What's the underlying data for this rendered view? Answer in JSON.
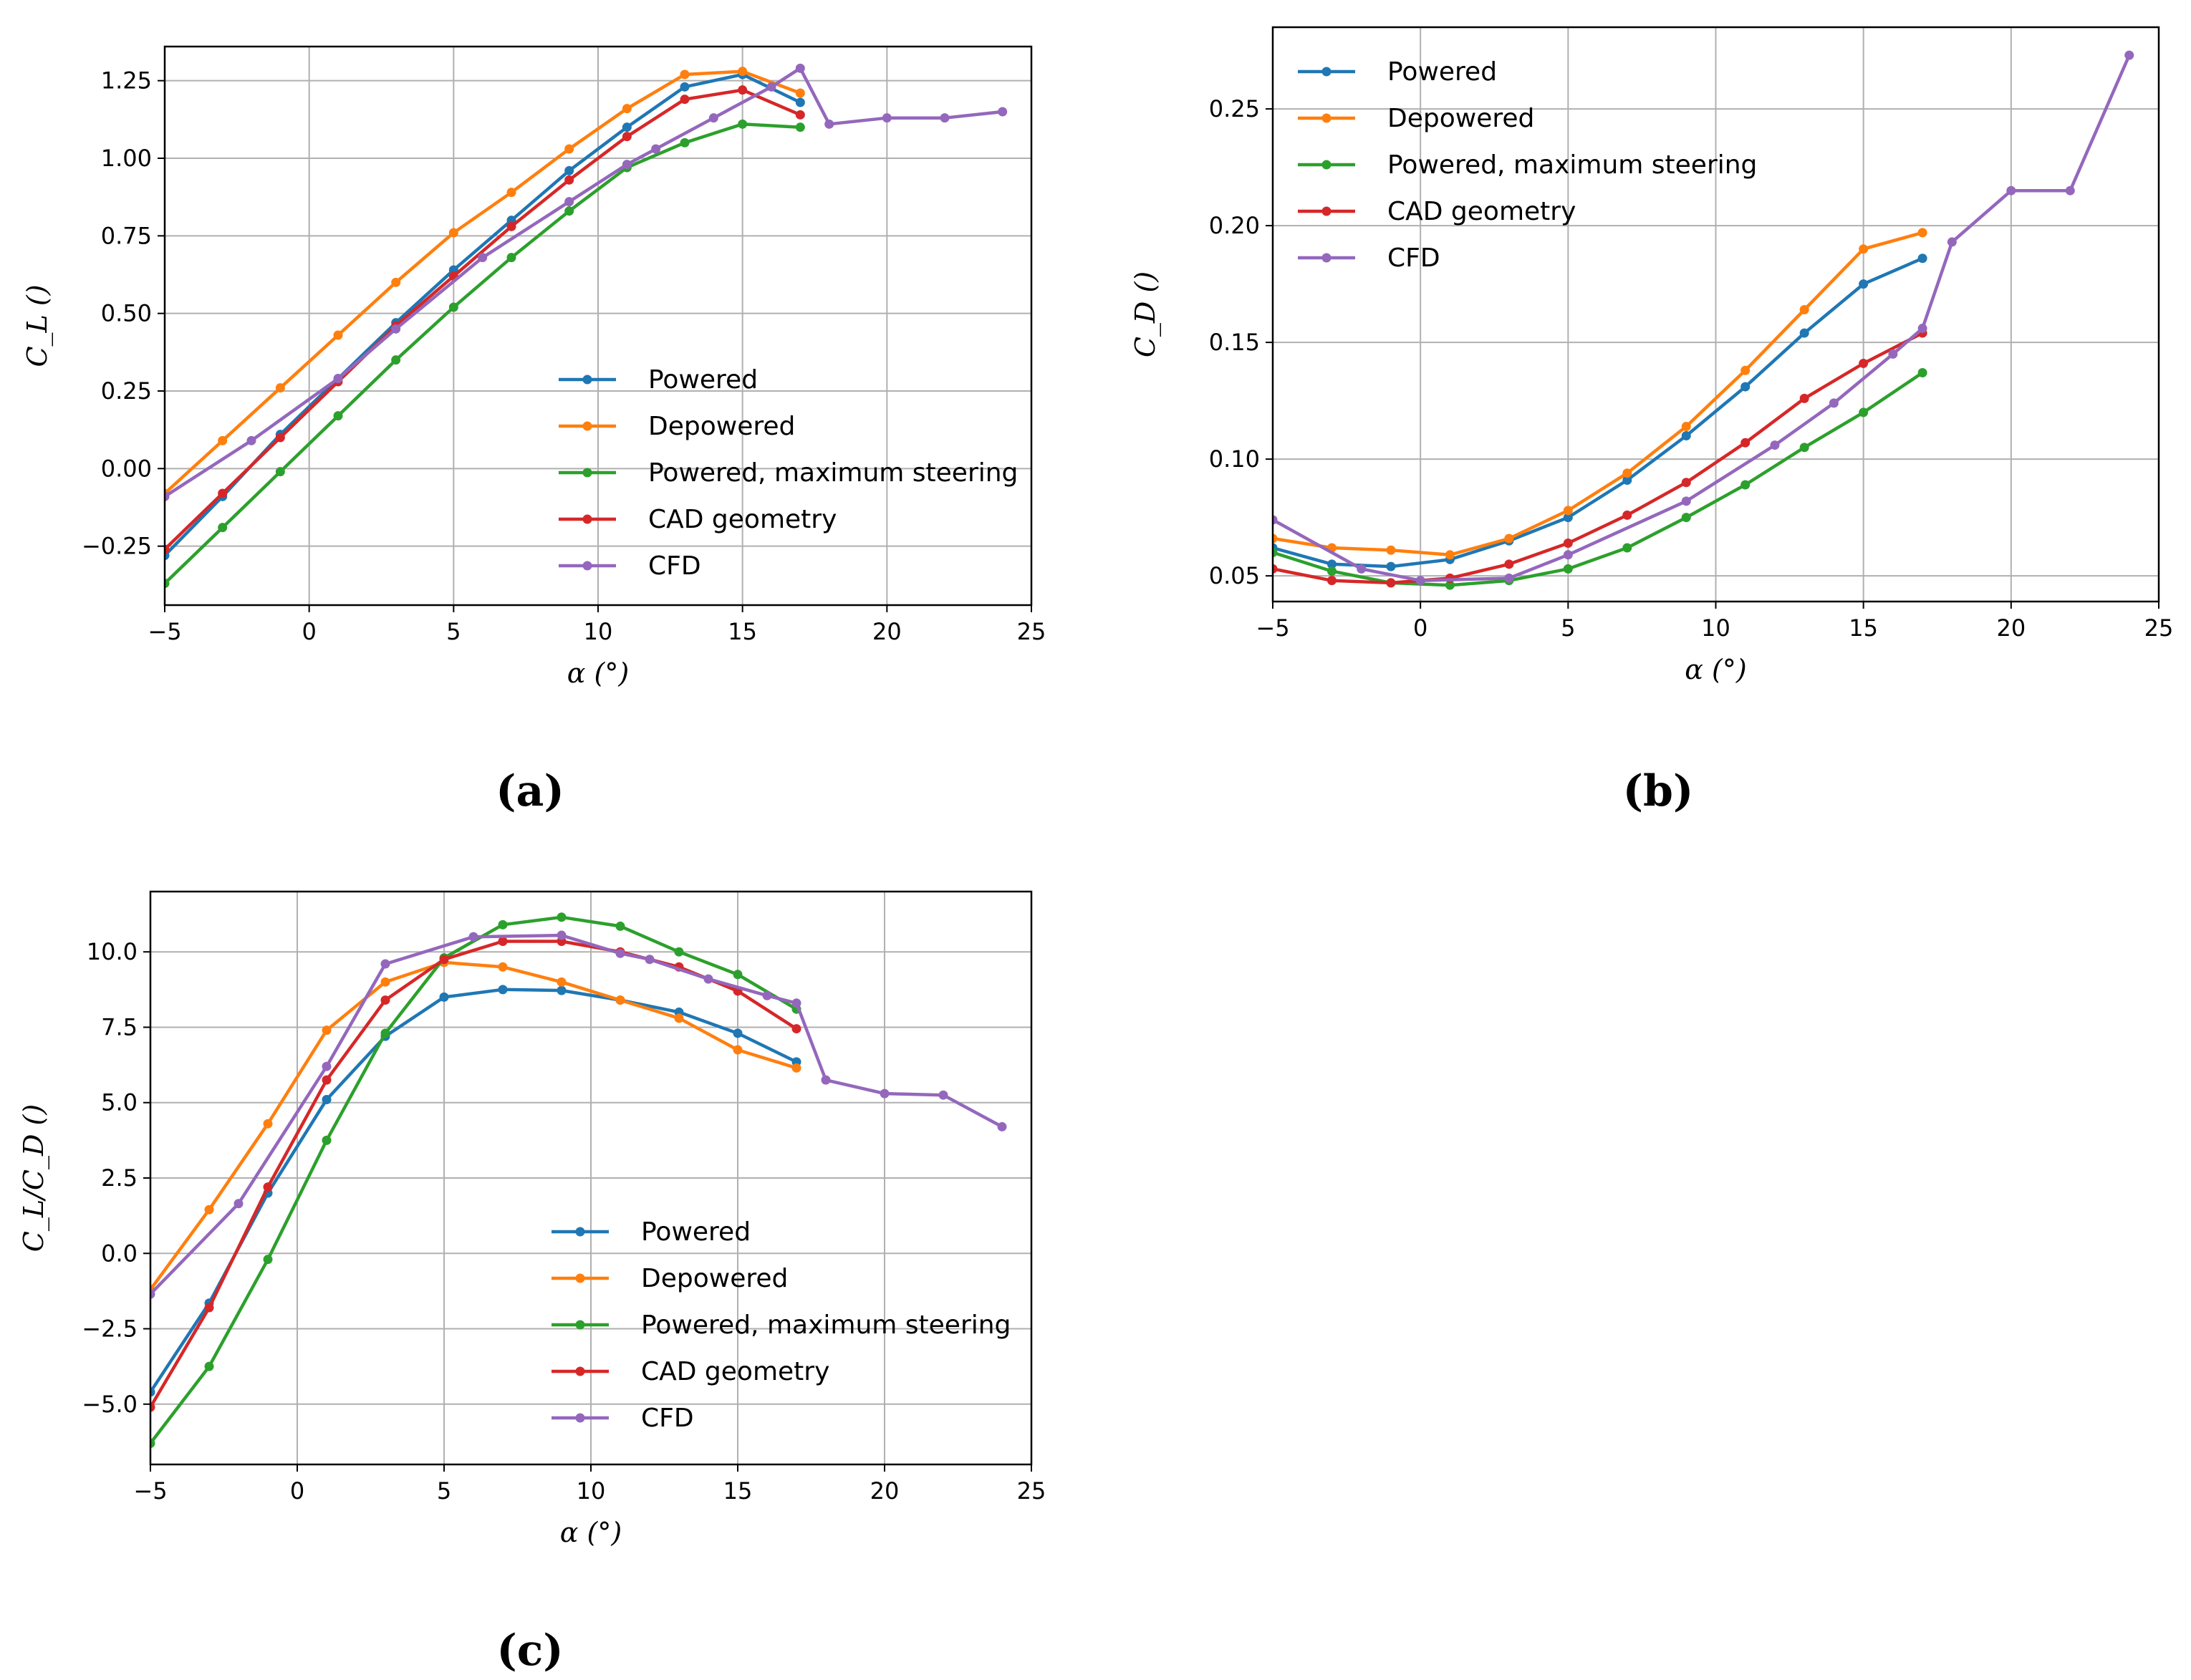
{
  "colors": {
    "Powered": "#1f77b4",
    "Depowered": "#ff7f0e",
    "Powered, maximum steering": "#2ca02c",
    "CAD geometry": "#d62728",
    "CFD": "#9467bd"
  },
  "chart_data": [
    {
      "type": "line",
      "caption": "(a)",
      "xlabel": "α (°)",
      "ylabel": "C_L ()",
      "xlim": [
        -5,
        25
      ],
      "ylim": [
        -0.44,
        1.36
      ],
      "xticks": [
        -5,
        0,
        5,
        10,
        15,
        20,
        25
      ],
      "xtick_labels": [
        "−5",
        "0",
        "5",
        "10",
        "15",
        "20",
        "25"
      ],
      "yticks": [
        -0.25,
        0.0,
        0.25,
        0.5,
        0.75,
        1.0,
        1.25
      ],
      "ytick_labels": [
        "−0.25",
        "0.00",
        "0.25",
        "0.50",
        "0.75",
        "1.00",
        "1.25"
      ],
      "grid": true,
      "legend": "lower-right",
      "series": [
        {
          "name": "Powered",
          "x": [
            -5,
            -3,
            -1,
            1,
            3,
            5,
            7,
            9,
            11,
            13,
            15,
            17
          ],
          "y": [
            -0.28,
            -0.09,
            0.11,
            0.29,
            0.47,
            0.64,
            0.8,
            0.96,
            1.1,
            1.23,
            1.27,
            1.18
          ]
        },
        {
          "name": "Depowered",
          "x": [
            -5,
            -3,
            -1,
            1,
            3,
            5,
            7,
            9,
            11,
            13,
            15,
            17
          ],
          "y": [
            -0.08,
            0.09,
            0.26,
            0.43,
            0.6,
            0.76,
            0.89,
            1.03,
            1.16,
            1.27,
            1.28,
            1.21
          ]
        },
        {
          "name": "Powered, maximum steering",
          "x": [
            -5,
            -3,
            -1,
            1,
            3,
            5,
            7,
            9,
            11,
            13,
            15,
            17
          ],
          "y": [
            -0.37,
            -0.19,
            -0.01,
            0.17,
            0.35,
            0.52,
            0.68,
            0.83,
            0.97,
            1.05,
            1.11,
            1.1
          ]
        },
        {
          "name": "CAD geometry",
          "x": [
            -5,
            -3,
            -1,
            1,
            3,
            5,
            7,
            9,
            11,
            13,
            15,
            17
          ],
          "y": [
            -0.26,
            -0.08,
            0.1,
            0.28,
            0.46,
            0.62,
            0.78,
            0.93,
            1.07,
            1.19,
            1.22,
            1.14
          ]
        },
        {
          "name": "CFD",
          "x": [
            -5,
            -2,
            1,
            3,
            6,
            9,
            11,
            12,
            14,
            16,
            17,
            18,
            20,
            22,
            24
          ],
          "y": [
            -0.09,
            0.09,
            0.29,
            0.45,
            0.68,
            0.86,
            0.98,
            1.03,
            1.13,
            1.23,
            1.29,
            1.11,
            1.13,
            1.13,
            1.15
          ]
        }
      ]
    },
    {
      "type": "line",
      "caption": "(b)",
      "xlabel": "α (°)",
      "ylabel": "C_D ()",
      "xlim": [
        -5,
        25
      ],
      "ylim": [
        0.039,
        0.285
      ],
      "xticks": [
        -5,
        0,
        5,
        10,
        15,
        20,
        25
      ],
      "xtick_labels": [
        "−5",
        "0",
        "5",
        "10",
        "15",
        "20",
        "25"
      ],
      "yticks": [
        0.05,
        0.1,
        0.15,
        0.2,
        0.25
      ],
      "ytick_labels": [
        "0.05",
        "0.10",
        "0.15",
        "0.20",
        "0.25"
      ],
      "grid": true,
      "legend": "upper-left",
      "series": [
        {
          "name": "Powered",
          "x": [
            -5,
            -3,
            -1,
            1,
            3,
            5,
            7,
            9,
            11,
            13,
            15,
            17
          ],
          "y": [
            0.062,
            0.055,
            0.054,
            0.057,
            0.065,
            0.075,
            0.091,
            0.11,
            0.131,
            0.154,
            0.175,
            0.186
          ]
        },
        {
          "name": "Depowered",
          "x": [
            -5,
            -3,
            -1,
            1,
            3,
            5,
            7,
            9,
            11,
            13,
            15,
            17
          ],
          "y": [
            0.066,
            0.062,
            0.061,
            0.059,
            0.066,
            0.078,
            0.094,
            0.114,
            0.138,
            0.164,
            0.19,
            0.197
          ]
        },
        {
          "name": "Powered, maximum steering",
          "x": [
            -5,
            -3,
            -1,
            1,
            3,
            5,
            7,
            9,
            11,
            13,
            15,
            17
          ],
          "y": [
            0.06,
            0.052,
            0.047,
            0.046,
            0.048,
            0.053,
            0.062,
            0.075,
            0.089,
            0.105,
            0.12,
            0.137
          ]
        },
        {
          "name": "CAD geometry",
          "x": [
            -5,
            -3,
            -1,
            1,
            3,
            5,
            7,
            9,
            11,
            13,
            15,
            17
          ],
          "y": [
            0.053,
            0.048,
            0.047,
            0.049,
            0.055,
            0.064,
            0.076,
            0.09,
            0.107,
            0.126,
            0.141,
            0.154
          ]
        },
        {
          "name": "CFD",
          "x": [
            -5,
            -2,
            0,
            3,
            5,
            9,
            12,
            14,
            16,
            17,
            18,
            20,
            22,
            24
          ],
          "y": [
            0.074,
            0.053,
            0.048,
            0.049,
            0.059,
            0.082,
            0.106,
            0.124,
            0.145,
            0.156,
            0.193,
            0.215,
            0.215,
            0.273
          ]
        }
      ]
    },
    {
      "type": "line",
      "caption": "(c)",
      "xlabel": "α (°)",
      "ylabel": "C_L/C_D ()",
      "xlim": [
        -5,
        25
      ],
      "ylim": [
        -7.0,
        12.0
      ],
      "xticks": [
        -5,
        0,
        5,
        10,
        15,
        20,
        25
      ],
      "xtick_labels": [
        "−5",
        "0",
        "5",
        "10",
        "15",
        "20",
        "25"
      ],
      "yticks": [
        -5.0,
        -2.5,
        0.0,
        2.5,
        5.0,
        7.5,
        10.0
      ],
      "ytick_labels": [
        "−5.0",
        "−2.5",
        "0.0",
        "2.5",
        "5.0",
        "7.5",
        "10.0"
      ],
      "grid": true,
      "legend": "lower-right",
      "series": [
        {
          "name": "Powered",
          "x": [
            -5,
            -3,
            -1,
            1,
            3,
            5,
            7,
            9,
            11,
            13,
            15,
            17
          ],
          "y": [
            -4.6,
            -1.65,
            2.0,
            5.1,
            7.2,
            8.5,
            8.75,
            8.72,
            8.4,
            8.0,
            7.3,
            6.35
          ]
        },
        {
          "name": "Depowered",
          "x": [
            -5,
            -3,
            -1,
            1,
            3,
            5,
            7,
            9,
            11,
            13,
            15,
            17
          ],
          "y": [
            -1.2,
            1.45,
            4.3,
            7.4,
            9.0,
            9.65,
            9.5,
            9.0,
            8.4,
            7.8,
            6.75,
            6.15
          ]
        },
        {
          "name": "Powered, maximum steering",
          "x": [
            -5,
            -3,
            -1,
            1,
            3,
            5,
            7,
            9,
            11,
            13,
            15,
            17
          ],
          "y": [
            -6.3,
            -3.75,
            -0.2,
            3.75,
            7.3,
            9.8,
            10.9,
            11.15,
            10.85,
            10.0,
            9.25,
            8.1
          ]
        },
        {
          "name": "CAD geometry",
          "x": [
            -5,
            -3,
            -1,
            1,
            3,
            5,
            7,
            9,
            11,
            13,
            15,
            17
          ],
          "y": [
            -5.1,
            -1.8,
            2.2,
            5.75,
            8.4,
            9.75,
            10.35,
            10.35,
            10.0,
            9.5,
            8.7,
            7.45
          ]
        },
        {
          "name": "CFD",
          "x": [
            -5,
            -2,
            1,
            3,
            6,
            9,
            11,
            12,
            14,
            16,
            17,
            18,
            20,
            22,
            24
          ],
          "y": [
            -1.35,
            1.65,
            6.2,
            9.6,
            10.5,
            10.55,
            9.95,
            9.75,
            9.1,
            8.55,
            8.3,
            5.75,
            5.3,
            5.25,
            4.2
          ]
        }
      ]
    }
  ]
}
